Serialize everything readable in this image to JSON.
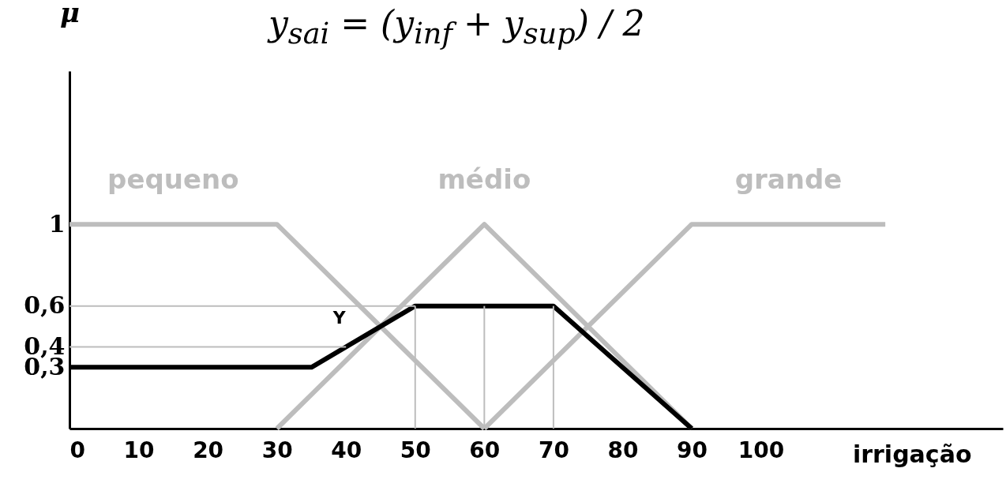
{
  "chart_data": {
    "type": "line",
    "xlabel": "irrigação",
    "ylabel": "μ",
    "annotations": [
      "y$_{sai}$ = (y$_{inf}$ + y$_{sup}$) / 2",
      {
        "text": "Y",
        "x": 42,
        "y": 0.44
      }
    ],
    "series": [
      {
        "name": "pequeno",
        "color": "#bdbdbd",
        "x": [
          0,
          30,
          60
        ],
        "values": [
          1,
          1,
          0
        ]
      },
      {
        "name": "médio",
        "color": "#bdbdbd",
        "x": [
          30,
          60,
          90
        ],
        "values": [
          0,
          1,
          0
        ]
      },
      {
        "name": "grande",
        "color": "#bdbdbd",
        "x": [
          60,
          90,
          118
        ],
        "values": [
          0,
          1,
          1
        ]
      },
      {
        "color": "#000000",
        "x": [
          0,
          35,
          50,
          70,
          90
        ],
        "values": [
          0.3,
          0.3,
          0.6,
          0.6,
          0
        ]
      }
    ],
    "ref_lines": [
      {
        "axis": "y",
        "value": 0.6,
        "color": "#bdbdbd"
      },
      {
        "axis": "y",
        "value": 0.4,
        "color": "#bdbdbd"
      },
      {
        "axis": "x",
        "value": 50,
        "color": "#bdbdbd"
      },
      {
        "axis": "x",
        "value": 60,
        "color": "#bdbdbd"
      },
      {
        "axis": "x",
        "value": 70,
        "color": "#bdbdbd"
      }
    ],
    "xlim": [
      0,
      135
    ],
    "xticks": [
      0,
      10,
      20,
      30,
      40,
      50,
      60,
      70,
      80,
      90,
      100
    ],
    "ylim": [
      0,
      1.75
    ],
    "yticks": [
      {
        "value": 0.3,
        "label": "0,3"
      },
      {
        "value": 0.4,
        "label": "0,4"
      },
      {
        "value": 0.6,
        "label": "0,6"
      },
      1
    ]
  }
}
